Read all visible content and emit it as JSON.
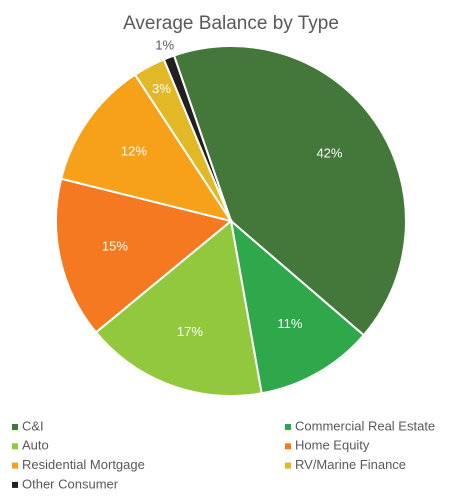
{
  "chart_data": {
    "type": "pie",
    "title": "Average Balance by Type",
    "categories": [
      "C&I",
      "Commercial Real Estate",
      "Auto",
      "Home Equity",
      "Residential Mortgage",
      "RV/Marine Finance",
      "Other Consumer"
    ],
    "values": [
      42,
      11,
      17,
      15,
      12,
      3,
      1
    ],
    "value_labels": [
      "42%",
      "11%",
      "17%",
      "15%",
      "12%",
      "3%",
      "1%"
    ],
    "colors": [
      "#43783a",
      "#2ea84a",
      "#92c83e",
      "#f47920",
      "#f7a11a",
      "#e3b826",
      "#231f20"
    ],
    "legend": "bottom"
  }
}
